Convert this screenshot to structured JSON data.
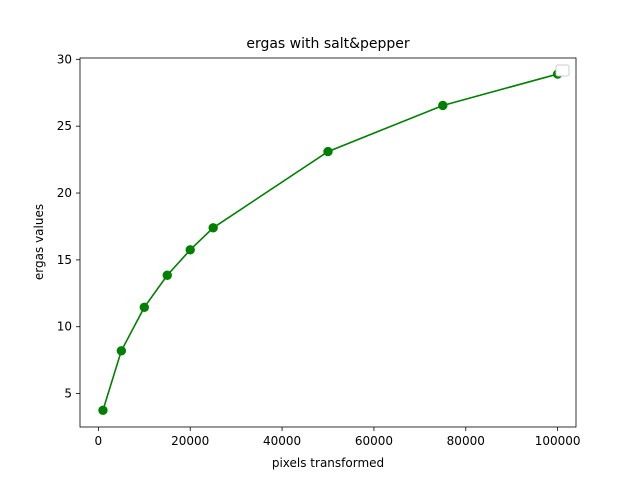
{
  "chart_data": {
    "type": "line",
    "title": "ergas with salt&pepper",
    "xlabel": "pixels transformed",
    "ylabel": "ergas values",
    "xlim": [
      -4000,
      104000
    ],
    "ylim": [
      2.5,
      30.1
    ],
    "xticks": [
      0,
      20000,
      40000,
      60000,
      80000,
      100000
    ],
    "yticks": [
      5,
      10,
      15,
      20,
      25,
      30
    ],
    "grid": false,
    "legend": "top-right (empty)",
    "series": [
      {
        "color": "#008000",
        "marker": "circle",
        "x": [
          1000,
          5000,
          10000,
          15000,
          20000,
          25000,
          50000,
          75000,
          100000
        ],
        "y": [
          3.75,
          8.2,
          11.45,
          13.85,
          15.75,
          17.4,
          23.1,
          26.55,
          28.9
        ]
      }
    ]
  }
}
